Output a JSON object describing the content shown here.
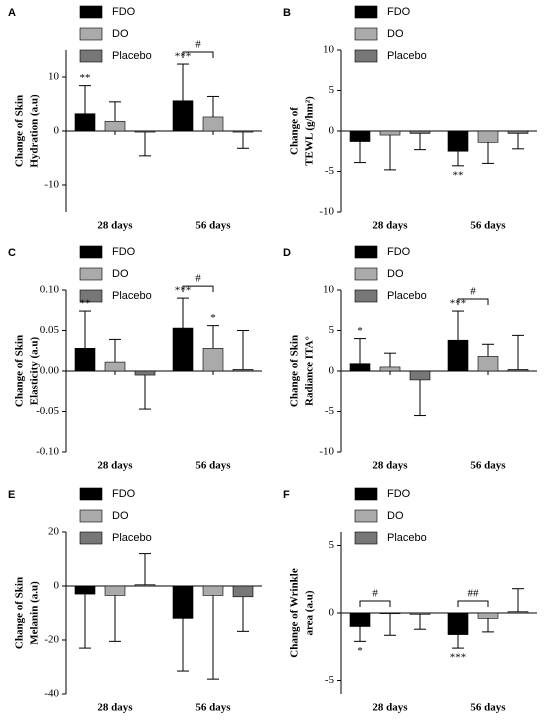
{
  "chart_data": [
    {
      "type": "bar",
      "label": "A",
      "ylabel": [
        "Change of Skin",
        "Hydration (a.u)"
      ],
      "categories": [
        "28 days",
        "56 days"
      ],
      "ylim": [
        -15,
        15
      ],
      "yticks": [
        -10,
        0,
        10
      ],
      "legend": "upper left",
      "series": [
        {
          "name": "FDO",
          "color": "#000000",
          "values": [
            3.2,
            5.6
          ],
          "errors": [
            5.2,
            6.8
          ]
        },
        {
          "name": "DO",
          "color": "#aaaaaa",
          "values": [
            1.8,
            2.6
          ],
          "errors": [
            3.6,
            3.8
          ]
        },
        {
          "name": "Placebo",
          "color": "#777777",
          "values": [
            -0.2,
            -0.2
          ],
          "errors": [
            4.4,
            3.0
          ]
        }
      ],
      "annotations": [
        {
          "text": "**",
          "series": 0,
          "category": 0
        },
        {
          "text": "***",
          "series": 0,
          "category": 1
        }
      ],
      "brackets": [
        {
          "text": "#",
          "from": 0,
          "to": 1,
          "category": 1
        }
      ]
    },
    {
      "type": "bar",
      "label": "B",
      "ylabel": [
        "Change of",
        "TEWL (g/hm²)"
      ],
      "categories": [
        "28 days",
        "56 days"
      ],
      "ylim": [
        -10,
        10
      ],
      "yticks": [
        -10,
        -5,
        0,
        5,
        10
      ],
      "legend": "upper left",
      "series": [
        {
          "name": "FDO",
          "color": "#000000",
          "values": [
            -1.3,
            -2.5
          ],
          "errors": [
            2.6,
            1.8
          ]
        },
        {
          "name": "DO",
          "color": "#aaaaaa",
          "values": [
            -0.5,
            -1.4
          ],
          "errors": [
            4.3,
            2.6
          ]
        },
        {
          "name": "Placebo",
          "color": "#777777",
          "values": [
            -0.3,
            -0.3
          ],
          "errors": [
            2.0,
            1.9
          ]
        }
      ],
      "annotations": [
        {
          "text": "**",
          "series": 0,
          "category": 1
        }
      ],
      "brackets": []
    },
    {
      "type": "bar",
      "label": "C",
      "ylabel": [
        "Change of Skin",
        "Elasticity (a.u)"
      ],
      "categories": [
        "28 days",
        "56 days"
      ],
      "ylim": [
        -0.1,
        0.1
      ],
      "yticks": [
        {
          "value": -0.1,
          "label": "-0.10"
        },
        {
          "value": -0.05,
          "label": "-0.05"
        },
        {
          "value": 0,
          "label": "0.00"
        },
        {
          "value": 0.05,
          "label": "0.05"
        },
        {
          "value": 0.1,
          "label": "0.10"
        }
      ],
      "legend": "upper left",
      "series": [
        {
          "name": "FDO",
          "color": "#000000",
          "values": [
            0.028,
            0.053
          ],
          "errors": [
            0.046,
            0.037
          ]
        },
        {
          "name": "DO",
          "color": "#aaaaaa",
          "values": [
            0.011,
            0.028
          ],
          "errors": [
            0.028,
            0.028
          ]
        },
        {
          "name": "Placebo",
          "color": "#777777",
          "values": [
            -0.005,
            0.002
          ],
          "errors": [
            0.042,
            0.048
          ]
        }
      ],
      "annotations": [
        {
          "text": "**",
          "series": 0,
          "category": 0
        },
        {
          "text": "***",
          "series": 0,
          "category": 1
        },
        {
          "text": "*",
          "series": 1,
          "category": 1
        }
      ],
      "brackets": [
        {
          "text": "#",
          "from": 0,
          "to": 1,
          "category": 1
        }
      ]
    },
    {
      "type": "bar",
      "label": "D",
      "ylabel": [
        "Change of Skin",
        "Radiance ITA°"
      ],
      "categories": [
        "28 days",
        "56 days"
      ],
      "ylim": [
        -10,
        10
      ],
      "yticks": [
        -10,
        -5,
        0,
        5,
        10
      ],
      "legend": "upper left",
      "series": [
        {
          "name": "FDO",
          "color": "#000000",
          "values": [
            0.9,
            3.8
          ],
          "errors": [
            3.1,
            3.6
          ]
        },
        {
          "name": "DO",
          "color": "#aaaaaa",
          "values": [
            0.5,
            1.8
          ],
          "errors": [
            1.7,
            1.5
          ]
        },
        {
          "name": "Placebo",
          "color": "#777777",
          "values": [
            -1.1,
            0.2
          ],
          "errors": [
            4.4,
            4.2
          ]
        }
      ],
      "annotations": [
        {
          "text": "*",
          "series": 0,
          "category": 0
        },
        {
          "text": "***",
          "series": 0,
          "category": 1
        }
      ],
      "brackets": [
        {
          "text": "#",
          "from": 0,
          "to": 1,
          "category": 1
        }
      ]
    },
    {
      "type": "bar",
      "label": "E",
      "ylabel": [
        "Change of Skin",
        "Melanin (a.u)"
      ],
      "categories": [
        "28 days",
        "56 days"
      ],
      "ylim": [
        -40,
        20
      ],
      "yticks": [
        -40,
        -20,
        0,
        20
      ],
      "legend": "upper left",
      "series": [
        {
          "name": "FDO",
          "color": "#000000",
          "values": [
            -3,
            -12
          ],
          "errors": [
            20,
            19.5
          ]
        },
        {
          "name": "DO",
          "color": "#aaaaaa",
          "values": [
            -3.5,
            -3.5
          ],
          "errors": [
            17,
            31
          ]
        },
        {
          "name": "Placebo",
          "color": "#777777",
          "values": [
            0.5,
            -4
          ],
          "errors": [
            11.5,
            12.8
          ]
        }
      ],
      "annotations": [],
      "brackets": []
    },
    {
      "type": "bar",
      "label": "F",
      "ylabel": [
        "Change of Wrinkle",
        "area (a.u)"
      ],
      "categories": [
        "28 days",
        "56 days"
      ],
      "ylim": [
        -6,
        6
      ],
      "yticks": [
        -5,
        0,
        5
      ],
      "legend": "upper left",
      "series": [
        {
          "name": "FDO",
          "color": "#000000",
          "values": [
            -1.0,
            -1.6
          ],
          "errors": [
            1.1,
            1.0
          ]
        },
        {
          "name": "DO",
          "color": "#aaaaaa",
          "values": [
            -0.05,
            -0.4
          ],
          "errors": [
            1.6,
            1.0
          ]
        },
        {
          "name": "Placebo",
          "color": "#777777",
          "values": [
            -0.1,
            0.1
          ],
          "errors": [
            1.1,
            1.7
          ]
        }
      ],
      "annotations": [
        {
          "text": "*",
          "series": 0,
          "category": 0
        },
        {
          "text": "***",
          "series": 0,
          "category": 1
        }
      ],
      "brackets": [
        {
          "text": "#",
          "from": 0,
          "to": 1,
          "category": 0
        },
        {
          "text": "##",
          "from": 0,
          "to": 1,
          "category": 1
        }
      ]
    }
  ]
}
